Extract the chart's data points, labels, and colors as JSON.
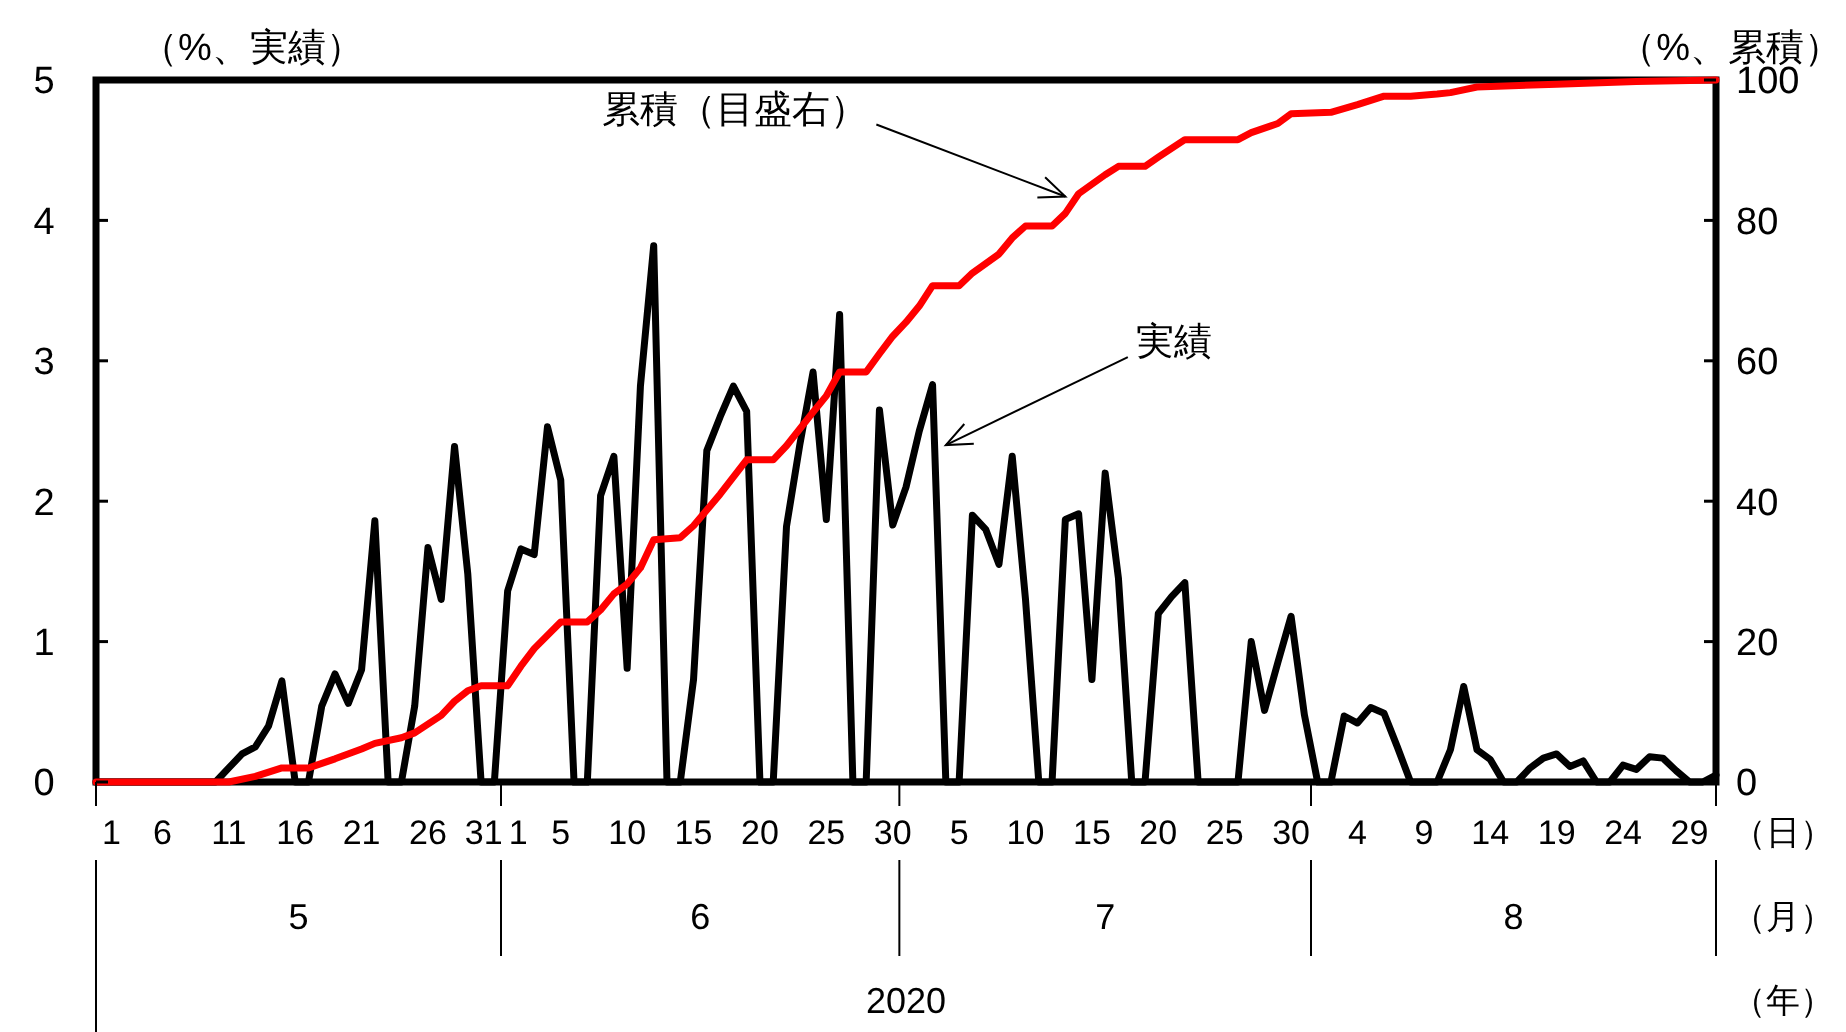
{
  "chart_data": {
    "type": "line",
    "ylabel": "（%、実績）",
    "y2label": "（%、累積）",
    "xlim": [
      "2020-05-01",
      "2020-08-31"
    ],
    "xticks": [
      {
        "value": "2020-05-01",
        "label": "1"
      },
      {
        "value": "2020-05-06",
        "label": "6"
      },
      {
        "value": "2020-05-11",
        "label": "11"
      },
      {
        "value": "2020-05-16",
        "label": "16"
      },
      {
        "value": "2020-05-21",
        "label": "21"
      },
      {
        "value": "2020-05-26",
        "label": "26"
      },
      {
        "value": "2020-05-31",
        "label": "31"
      },
      {
        "value": "2020-06-01",
        "label": "1"
      },
      {
        "value": "2020-06-05",
        "label": "5"
      },
      {
        "value": "2020-06-10",
        "label": "10"
      },
      {
        "value": "2020-06-15",
        "label": "15"
      },
      {
        "value": "2020-06-20",
        "label": "20"
      },
      {
        "value": "2020-06-25",
        "label": "25"
      },
      {
        "value": "2020-06-30",
        "label": "30"
      },
      {
        "value": "2020-07-05",
        "label": "5"
      },
      {
        "value": "2020-07-10",
        "label": "10"
      },
      {
        "value": "2020-07-15",
        "label": "15"
      },
      {
        "value": "2020-07-20",
        "label": "20"
      },
      {
        "value": "2020-07-25",
        "label": "25"
      },
      {
        "value": "2020-07-30",
        "label": "30"
      },
      {
        "value": "2020-08-04",
        "label": "4"
      },
      {
        "value": "2020-08-09",
        "label": "9"
      },
      {
        "value": "2020-08-14",
        "label": "14"
      },
      {
        "value": "2020-08-19",
        "label": "19"
      },
      {
        "value": "2020-08-24",
        "label": "24"
      },
      {
        "value": "2020-08-29",
        "label": "29"
      }
    ],
    "ylim": [
      0,
      5
    ],
    "yticks": [
      0,
      1,
      2,
      3,
      4,
      5
    ],
    "y2lim": [
      0,
      100
    ],
    "y2ticks": [
      0,
      20,
      40,
      60,
      80,
      100
    ],
    "grid": false,
    "marker": "none",
    "line_style": "solid",
    "x": [
      "2020-05-01",
      "2020-05-02",
      "2020-05-03",
      "2020-05-04",
      "2020-05-05",
      "2020-05-06",
      "2020-05-07",
      "2020-05-08",
      "2020-05-09",
      "2020-05-10",
      "2020-05-11",
      "2020-05-12",
      "2020-05-13",
      "2020-05-14",
      "2020-05-15",
      "2020-05-16",
      "2020-05-17",
      "2020-05-18",
      "2020-05-19",
      "2020-05-20",
      "2020-05-21",
      "2020-05-22",
      "2020-05-23",
      "2020-05-24",
      "2020-05-25",
      "2020-05-26",
      "2020-05-27",
      "2020-05-28",
      "2020-05-29",
      "2020-05-30",
      "2020-05-31",
      "2020-06-01",
      "2020-06-02",
      "2020-06-03",
      "2020-06-04",
      "2020-06-05",
      "2020-06-06",
      "2020-06-07",
      "2020-06-08",
      "2020-06-09",
      "2020-06-10",
      "2020-06-11",
      "2020-06-12",
      "2020-06-13",
      "2020-06-14",
      "2020-06-15",
      "2020-06-16",
      "2020-06-17",
      "2020-06-18",
      "2020-06-19",
      "2020-06-20",
      "2020-06-21",
      "2020-06-22",
      "2020-06-23",
      "2020-06-24",
      "2020-06-25",
      "2020-06-26",
      "2020-06-27",
      "2020-06-28",
      "2020-06-29",
      "2020-06-30",
      "2020-07-01",
      "2020-07-02",
      "2020-07-03",
      "2020-07-04",
      "2020-07-05",
      "2020-07-06",
      "2020-07-07",
      "2020-07-08",
      "2020-07-09",
      "2020-07-10",
      "2020-07-11",
      "2020-07-12",
      "2020-07-13",
      "2020-07-14",
      "2020-07-15",
      "2020-07-16",
      "2020-07-17",
      "2020-07-18",
      "2020-07-19",
      "2020-07-20",
      "2020-07-21",
      "2020-07-22",
      "2020-07-23",
      "2020-07-24",
      "2020-07-25",
      "2020-07-26",
      "2020-07-27",
      "2020-07-28",
      "2020-07-29",
      "2020-07-30",
      "2020-07-31",
      "2020-08-01",
      "2020-08-02",
      "2020-08-03",
      "2020-08-04",
      "2020-08-05",
      "2020-08-06",
      "2020-08-07",
      "2020-08-08",
      "2020-08-09",
      "2020-08-10",
      "2020-08-11",
      "2020-08-12",
      "2020-08-13",
      "2020-08-14",
      "2020-08-15",
      "2020-08-16",
      "2020-08-17",
      "2020-08-18",
      "2020-08-19",
      "2020-08-20",
      "2020-08-21",
      "2020-08-22",
      "2020-08-23",
      "2020-08-24",
      "2020-08-25",
      "2020-08-26",
      "2020-08-27",
      "2020-08-28",
      "2020-08-29",
      "2020-08-30",
      "2020-08-31"
    ],
    "series": [
      {
        "color": "#000000",
        "values": [
          0,
          0,
          0,
          0,
          0,
          0,
          0,
          0,
          0,
          0,
          0.1,
          0.2,
          0.25,
          0.4,
          0.72,
          0,
          0,
          0.54,
          0.77,
          0.56,
          0.8,
          1.86,
          0,
          0,
          0.54,
          1.67,
          1.3,
          2.39,
          1.48,
          0,
          0,
          1.36,
          1.66,
          1.62,
          2.53,
          2.15,
          0,
          0,
          2.04,
          2.32,
          0.81,
          2.82,
          3.82,
          0,
          0,
          0.73,
          2.36,
          2.6,
          2.82,
          2.64,
          0,
          0,
          1.82,
          2.4,
          2.92,
          1.87,
          3.33,
          0,
          0,
          2.65,
          1.83,
          2.1,
          2.5,
          2.83,
          0,
          0,
          1.9,
          1.8,
          1.55,
          2.32,
          1.3,
          0,
          0,
          1.87,
          1.91,
          0.73,
          2.2,
          1.45,
          0,
          0,
          1.2,
          1.32,
          1.42,
          0,
          0,
          0,
          0,
          1.0,
          0.51,
          0.85,
          1.18,
          0.48,
          0,
          0,
          0.47,
          0.42,
          0.53,
          0.49,
          0.25,
          0,
          0,
          0,
          0.23,
          0.68,
          0.23,
          0.16,
          0,
          0,
          0.1,
          0.17,
          0.2,
          0.11,
          0.15,
          0,
          0,
          0.12,
          0.09,
          0.18,
          0.17,
          0.08,
          0,
          0,
          0.05
        ]
      },
      {
        "color": "#ff0000",
        "axis": "y2",
        "x": [
          "2020-05-01",
          "2020-05-11",
          "2020-05-13",
          "2020-05-15",
          "2020-05-17",
          "2020-05-19",
          "2020-05-21",
          "2020-05-22",
          "2020-05-24",
          "2020-05-25",
          "2020-05-27",
          "2020-05-28",
          "2020-05-29",
          "2020-05-30",
          "2020-06-01",
          "2020-06-02",
          "2020-06-03",
          "2020-06-05",
          "2020-06-07",
          "2020-06-08",
          "2020-06-09",
          "2020-06-10",
          "2020-06-11",
          "2020-06-12",
          "2020-06-14",
          "2020-06-15",
          "2020-06-17",
          "2020-06-19",
          "2020-06-21",
          "2020-06-22",
          "2020-06-24",
          "2020-06-25",
          "2020-06-26",
          "2020-06-28",
          "2020-06-29",
          "2020-06-30",
          "2020-07-01",
          "2020-07-02",
          "2020-07-03",
          "2020-07-05",
          "2020-07-06",
          "2020-07-08",
          "2020-07-09",
          "2020-07-10",
          "2020-07-12",
          "2020-07-13",
          "2020-07-14",
          "2020-07-16",
          "2020-07-17",
          "2020-07-19",
          "2020-07-20",
          "2020-07-22",
          "2020-07-26",
          "2020-07-27",
          "2020-07-29",
          "2020-07-30",
          "2020-08-02",
          "2020-08-04",
          "2020-08-06",
          "2020-08-08",
          "2020-08-10",
          "2020-08-11",
          "2020-08-13",
          "2020-08-19",
          "2020-08-25",
          "2020-08-31"
        ],
        "values": [
          0,
          0,
          0.8,
          2,
          2,
          3.3,
          4.7,
          5.5,
          6.3,
          7,
          9.5,
          11.5,
          13,
          13.7,
          13.7,
          16.5,
          19,
          22.8,
          22.8,
          24.5,
          26.8,
          28.2,
          30.5,
          34.5,
          34.8,
          36.5,
          41,
          45.9,
          45.9,
          47.9,
          52.7,
          55,
          58.4,
          58.4,
          61,
          63.5,
          65.5,
          67.8,
          70.7,
          70.7,
          72.5,
          75.2,
          77.5,
          79.2,
          79.2,
          81,
          83.8,
          86.5,
          87.7,
          87.7,
          89,
          91.5,
          91.5,
          92.5,
          93.8,
          95.2,
          95.4,
          96.5,
          97.7,
          97.7,
          98,
          98.2,
          99,
          99.4,
          99.8,
          100
        ]
      }
    ],
    "annotations": [
      {
        "text": "累積（目盛右）",
        "x": "2020-07-13",
        "y": 4.17
      },
      {
        "text": "実績",
        "x": "2020-07-04",
        "y": 2.4
      },
      "5",
      "6",
      "7",
      "8",
      "2020",
      "（日）",
      "（月）",
      "（年）"
    ]
  }
}
